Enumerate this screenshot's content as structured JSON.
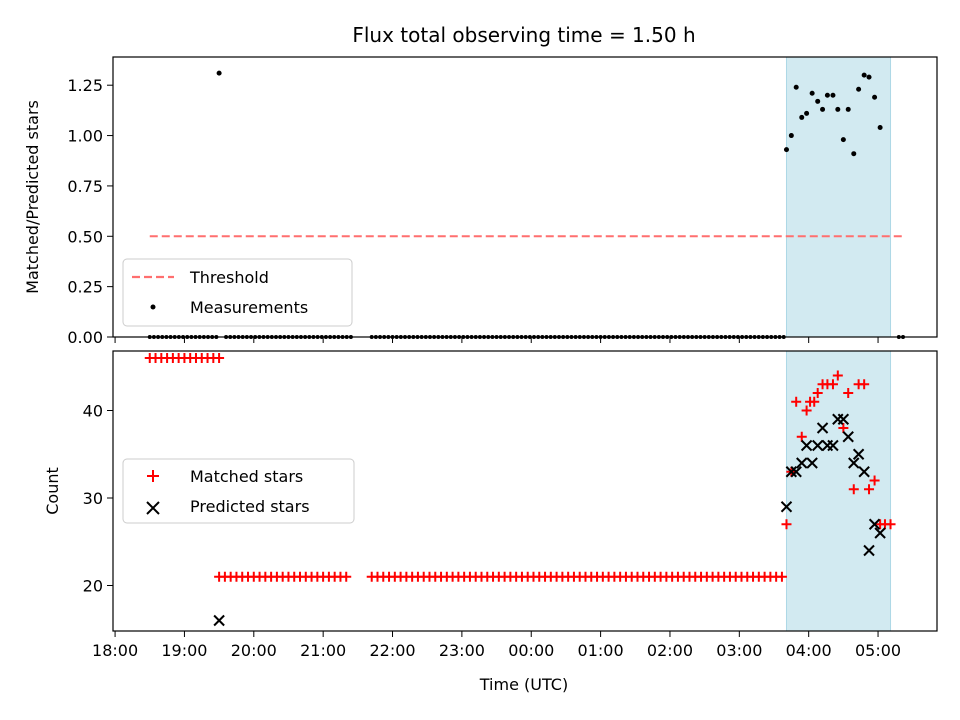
{
  "chart_data": {
    "title": "Flux total observing time = 1.50 h",
    "colors": {
      "matched": "#ff0000",
      "predicted": "#000000",
      "threshold": "#ff6f6f",
      "span": "#add8e6",
      "measurement": "#000000"
    },
    "x_axis": {
      "label": "Time (UTC)",
      "unit": "hours since 18:00",
      "range": [
        -0.03,
        11.85
      ],
      "ticks": [
        {
          "v": 0,
          "label": "18:00"
        },
        {
          "v": 1,
          "label": "19:00"
        },
        {
          "v": 2,
          "label": "20:00"
        },
        {
          "v": 3,
          "label": "21:00"
        },
        {
          "v": 4,
          "label": "22:00"
        },
        {
          "v": 5,
          "label": "23:00"
        },
        {
          "v": 6,
          "label": "00:00"
        },
        {
          "v": 7,
          "label": "01:00"
        },
        {
          "v": 8,
          "label": "02:00"
        },
        {
          "v": 9,
          "label": "03:00"
        },
        {
          "v": 10,
          "label": "04:00"
        },
        {
          "v": 11,
          "label": "05:00"
        }
      ]
    },
    "shaded_interval": [
      9.68,
      11.18
    ],
    "top": {
      "type": "scatter",
      "ylabel": "Matched/Predicted stars",
      "ylim": [
        0,
        1.39
      ],
      "yticks": [
        {
          "v": 0.0,
          "label": "0.00"
        },
        {
          "v": 0.25,
          "label": "0.25"
        },
        {
          "v": 0.5,
          "label": "0.50"
        },
        {
          "v": 0.75,
          "label": "0.75"
        },
        {
          "v": 1.0,
          "label": "1.00"
        },
        {
          "v": 1.25,
          "label": "1.25"
        }
      ],
      "threshold": {
        "value": 0.5,
        "x_range": [
          0.5,
          11.35
        ]
      },
      "legend": {
        "threshold": "Threshold",
        "measurements": "Measurements"
      },
      "zero_segments": [
        [
          0.5,
          1.5,
          0.06
        ],
        [
          1.6,
          3.4,
          0.06
        ],
        [
          3.7,
          9.65,
          0.06
        ],
        [
          11.3,
          11.36,
          0.06
        ]
      ],
      "measurements": [
        [
          1.5,
          1.31
        ],
        [
          9.68,
          0.93
        ],
        [
          9.75,
          1.0
        ],
        [
          9.82,
          1.24
        ],
        [
          9.9,
          1.09
        ],
        [
          9.97,
          1.11
        ],
        [
          10.05,
          1.21
        ],
        [
          10.13,
          1.17
        ],
        [
          10.2,
          1.13
        ],
        [
          10.27,
          1.2
        ],
        [
          10.35,
          1.2
        ],
        [
          10.42,
          1.13
        ],
        [
          10.5,
          0.98
        ],
        [
          10.57,
          1.13
        ],
        [
          10.65,
          0.91
        ],
        [
          10.72,
          1.23
        ],
        [
          10.8,
          1.3
        ],
        [
          10.87,
          1.29
        ],
        [
          10.95,
          1.19
        ],
        [
          11.03,
          1.04
        ]
      ]
    },
    "bottom": {
      "type": "scatter",
      "ylabel": "Count",
      "ylim": [
        14.8,
        46.8
      ],
      "yticks": [
        {
          "v": 20,
          "label": "20"
        },
        {
          "v": 30,
          "label": "30"
        },
        {
          "v": 40,
          "label": "40"
        }
      ],
      "legend": {
        "matched": "Matched stars",
        "predicted": "Predicted stars"
      },
      "matched_flat": [
        {
          "from": 0.5,
          "to": 1.5,
          "step": 0.0833,
          "y": 46
        },
        {
          "from": 1.5,
          "to": 3.4,
          "step": 0.0833,
          "y": 21
        },
        {
          "from": 3.7,
          "to": 9.65,
          "step": 0.0833,
          "y": 21
        }
      ],
      "matched_active": [
        [
          9.68,
          27
        ],
        [
          9.75,
          33
        ],
        [
          9.82,
          41
        ],
        [
          9.9,
          37
        ],
        [
          9.97,
          40
        ],
        [
          10.02,
          41
        ],
        [
          10.08,
          41
        ],
        [
          10.13,
          42
        ],
        [
          10.2,
          43
        ],
        [
          10.27,
          43
        ],
        [
          10.35,
          43
        ],
        [
          10.42,
          44
        ],
        [
          10.5,
          38
        ],
        [
          10.57,
          42
        ],
        [
          10.65,
          31
        ],
        [
          10.72,
          43
        ],
        [
          10.8,
          43
        ],
        [
          10.87,
          31
        ],
        [
          10.95,
          32
        ],
        [
          11.03,
          27
        ],
        [
          11.1,
          27
        ],
        [
          11.18,
          27
        ]
      ],
      "predicted": [
        [
          1.5,
          16
        ],
        [
          9.68,
          29
        ],
        [
          9.75,
          33
        ],
        [
          9.82,
          33
        ],
        [
          9.9,
          34
        ],
        [
          9.97,
          36
        ],
        [
          10.05,
          34
        ],
        [
          10.13,
          36
        ],
        [
          10.2,
          38
        ],
        [
          10.27,
          36
        ],
        [
          10.35,
          36
        ],
        [
          10.42,
          39
        ],
        [
          10.5,
          39
        ],
        [
          10.57,
          37
        ],
        [
          10.65,
          34
        ],
        [
          10.72,
          35
        ],
        [
          10.8,
          33
        ],
        [
          10.87,
          24
        ],
        [
          10.95,
          27
        ],
        [
          11.03,
          26
        ]
      ]
    }
  }
}
